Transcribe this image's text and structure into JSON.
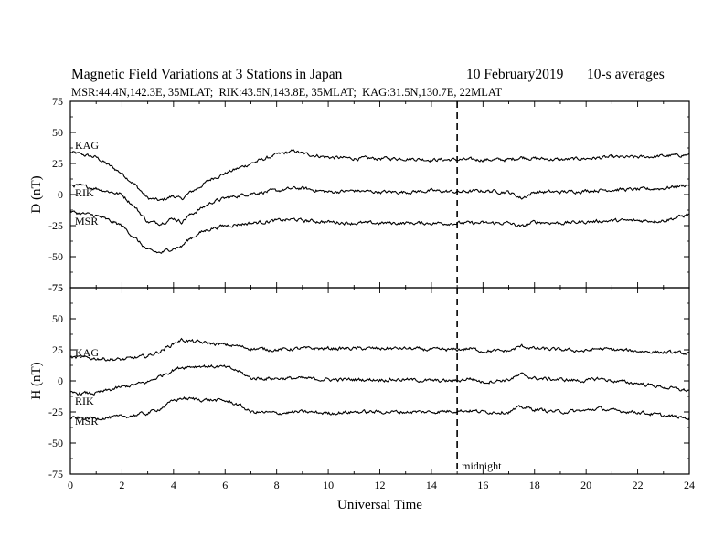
{
  "header": {
    "title": "Magnetic Field Variations at 3 Stations in Japan",
    "date": "10 February2019",
    "averaging": "10-s averages",
    "stations": "MSR:44.4N,142.3E, 35MLAT;  RIK:43.5N,143.8E, 35MLAT;  KAG:31.5N,130.7E, 22MLAT"
  },
  "chart_data": [
    {
      "type": "line",
      "panel": "D",
      "ylabel": "D (nT)",
      "ylim": [
        -75,
        75
      ],
      "yticks": [
        -75,
        -50,
        -25,
        0,
        25,
        50,
        75
      ],
      "xlim": [
        0,
        24
      ],
      "x": [
        0,
        1,
        2,
        2.5,
        3,
        3.5,
        4,
        4.3,
        4.6,
        5,
        5.5,
        6,
        7,
        8,
        8.7,
        9,
        10,
        11,
        12,
        13,
        14,
        15,
        16,
        17,
        17.5,
        18,
        19,
        20,
        21,
        22,
        23,
        24
      ],
      "series": [
        {
          "name": "KAG",
          "values": [
            34,
            30,
            17,
            8,
            -3,
            -5,
            -1,
            -4,
            1,
            6,
            13,
            17,
            25,
            32,
            35,
            33,
            30,
            29,
            29,
            29,
            28,
            28,
            28,
            28,
            30,
            29,
            28,
            29,
            30,
            30,
            31,
            32
          ]
        },
        {
          "name": "RIK",
          "values": [
            8,
            5,
            0,
            -10,
            -22,
            -23,
            -19,
            -22,
            -17,
            -12,
            -6,
            -3,
            1,
            3,
            5,
            5,
            2,
            3,
            2,
            2,
            3,
            2,
            3,
            2,
            -3,
            2,
            2,
            3,
            4,
            4,
            5,
            8
          ]
        },
        {
          "name": "MSR",
          "values": [
            -14,
            -17,
            -25,
            -35,
            -45,
            -47,
            -43,
            -42,
            -36,
            -31,
            -27,
            -25,
            -23,
            -21,
            -20,
            -21,
            -22,
            -23,
            -23,
            -23,
            -23,
            -23,
            -23,
            -23,
            -26,
            -22,
            -23,
            -22,
            -21,
            -21,
            -21,
            -16
          ]
        }
      ],
      "series_labels": [
        "KAG",
        "RIK",
        "MSR"
      ],
      "xaxis_ticks_shown": false
    },
    {
      "type": "line",
      "panel": "H",
      "ylabel": "H (nT)",
      "ylim": [
        -75,
        75
      ],
      "yticks": [
        -75,
        -50,
        -25,
        0,
        25,
        50,
        75
      ],
      "xlim": [
        0,
        24
      ],
      "xlabel": "Universal Time",
      "xticks": [
        0,
        2,
        4,
        6,
        8,
        10,
        12,
        14,
        16,
        18,
        20,
        22,
        24
      ],
      "x": [
        0,
        1,
        2,
        3,
        3.5,
        4,
        4.3,
        5,
        6,
        6.5,
        7,
        8,
        9,
        10,
        11,
        12,
        13,
        14,
        15,
        15.5,
        16,
        17,
        17.5,
        18,
        19,
        20,
        20.5,
        21,
        22,
        23,
        24
      ],
      "series": [
        {
          "name": "KAG",
          "values": [
            19,
            18,
            17,
            20,
            24,
            30,
            33,
            31,
            29,
            28,
            26,
            25,
            26,
            26,
            26,
            26,
            26,
            25,
            25,
            26,
            24,
            24,
            28,
            26,
            25,
            24,
            26,
            25,
            24,
            23,
            22
          ]
        },
        {
          "name": "RIK",
          "values": [
            -10,
            -10,
            -5,
            -1,
            4,
            9,
            11,
            12,
            11,
            8,
            2,
            2,
            2,
            1,
            1,
            1,
            1,
            0,
            0,
            2,
            -1,
            1,
            5,
            2,
            1,
            0,
            2,
            0,
            -2,
            -5,
            -8
          ]
        },
        {
          "name": "MSR",
          "values": [
            -30,
            -30,
            -29,
            -26,
            -22,
            -16,
            -14,
            -15,
            -16,
            -19,
            -25,
            -26,
            -25,
            -26,
            -25,
            -25,
            -25,
            -25,
            -24,
            -24,
            -25,
            -25,
            -21,
            -23,
            -25,
            -24,
            -22,
            -24,
            -25,
            -28,
            -30
          ]
        }
      ],
      "series_labels": [
        "KAG",
        "RIK",
        "MSR"
      ]
    }
  ],
  "annotations": {
    "midnight_label": "midnight",
    "midnight_ut": 15
  }
}
